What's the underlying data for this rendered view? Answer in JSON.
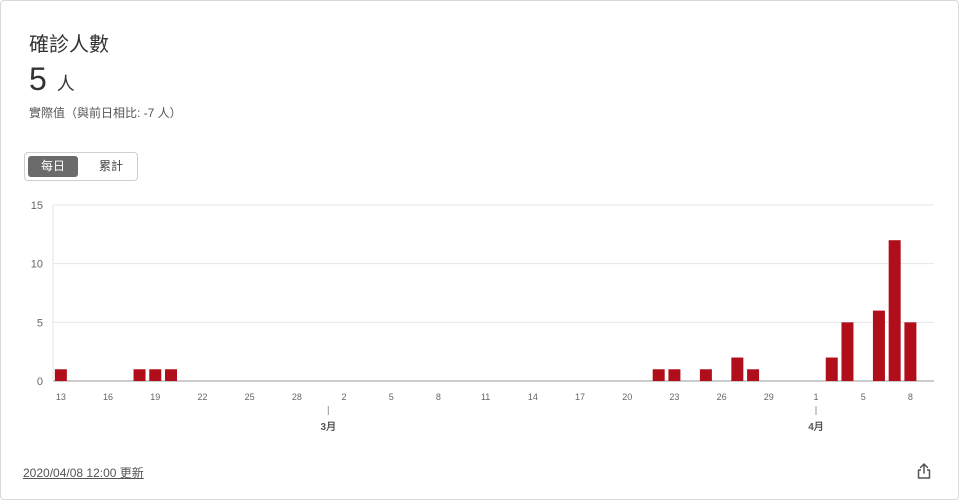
{
  "card": {
    "title": "確診人數",
    "value": "5",
    "unit": "人",
    "subtitle": "實際值（與前日相比: -7 人）",
    "toggle": {
      "daily": "每日",
      "cumulative": "累計"
    },
    "footer": "2020/04/08 12:00 更新",
    "share_icon": "share-icon"
  },
  "colors": {
    "bar": "#b10e1c",
    "grid": "#e6e6e6",
    "axis": "#999999"
  },
  "chart_data": {
    "type": "bar",
    "x": [
      "2/13",
      "2/14",
      "2/15",
      "2/16",
      "2/17",
      "2/18",
      "2/19",
      "2/20",
      "2/21",
      "2/22",
      "2/23",
      "2/24",
      "2/25",
      "2/26",
      "2/27",
      "2/28",
      "2/29",
      "3/1",
      "3/2",
      "3/3",
      "3/4",
      "3/5",
      "3/6",
      "3/7",
      "3/8",
      "3/9",
      "3/10",
      "3/11",
      "3/12",
      "3/13",
      "3/14",
      "3/15",
      "3/16",
      "3/17",
      "3/18",
      "3/19",
      "3/20",
      "3/21",
      "3/22",
      "3/23",
      "3/24",
      "3/25",
      "3/26",
      "3/27",
      "3/28",
      "3/29",
      "3/30",
      "3/31",
      "4/1",
      "4/2",
      "4/3",
      "4/4",
      "4/5",
      "4/6",
      "4/7",
      "4/8"
    ],
    "values": [
      1,
      0,
      0,
      0,
      0,
      1,
      1,
      1,
      0,
      0,
      0,
      0,
      0,
      0,
      0,
      0,
      0,
      0,
      0,
      0,
      0,
      0,
      0,
      0,
      0,
      0,
      0,
      0,
      0,
      0,
      0,
      0,
      0,
      0,
      0,
      0,
      0,
      0,
      1,
      1,
      0,
      1,
      0,
      2,
      1,
      0,
      0,
      0,
      0,
      2,
      5,
      0,
      6,
      12,
      5,
      0
    ],
    "yticks": [
      0,
      5,
      10,
      15
    ],
    "ylim": [
      0,
      15
    ],
    "xtick_labels": [
      "13",
      "16",
      "19",
      "22",
      "25",
      "28",
      "2",
      "5",
      "8",
      "11",
      "14",
      "17",
      "20",
      "23",
      "26",
      "29",
      "1",
      "5",
      "8"
    ],
    "month_labels": [
      "3月",
      "4月"
    ],
    "grid": true
  }
}
